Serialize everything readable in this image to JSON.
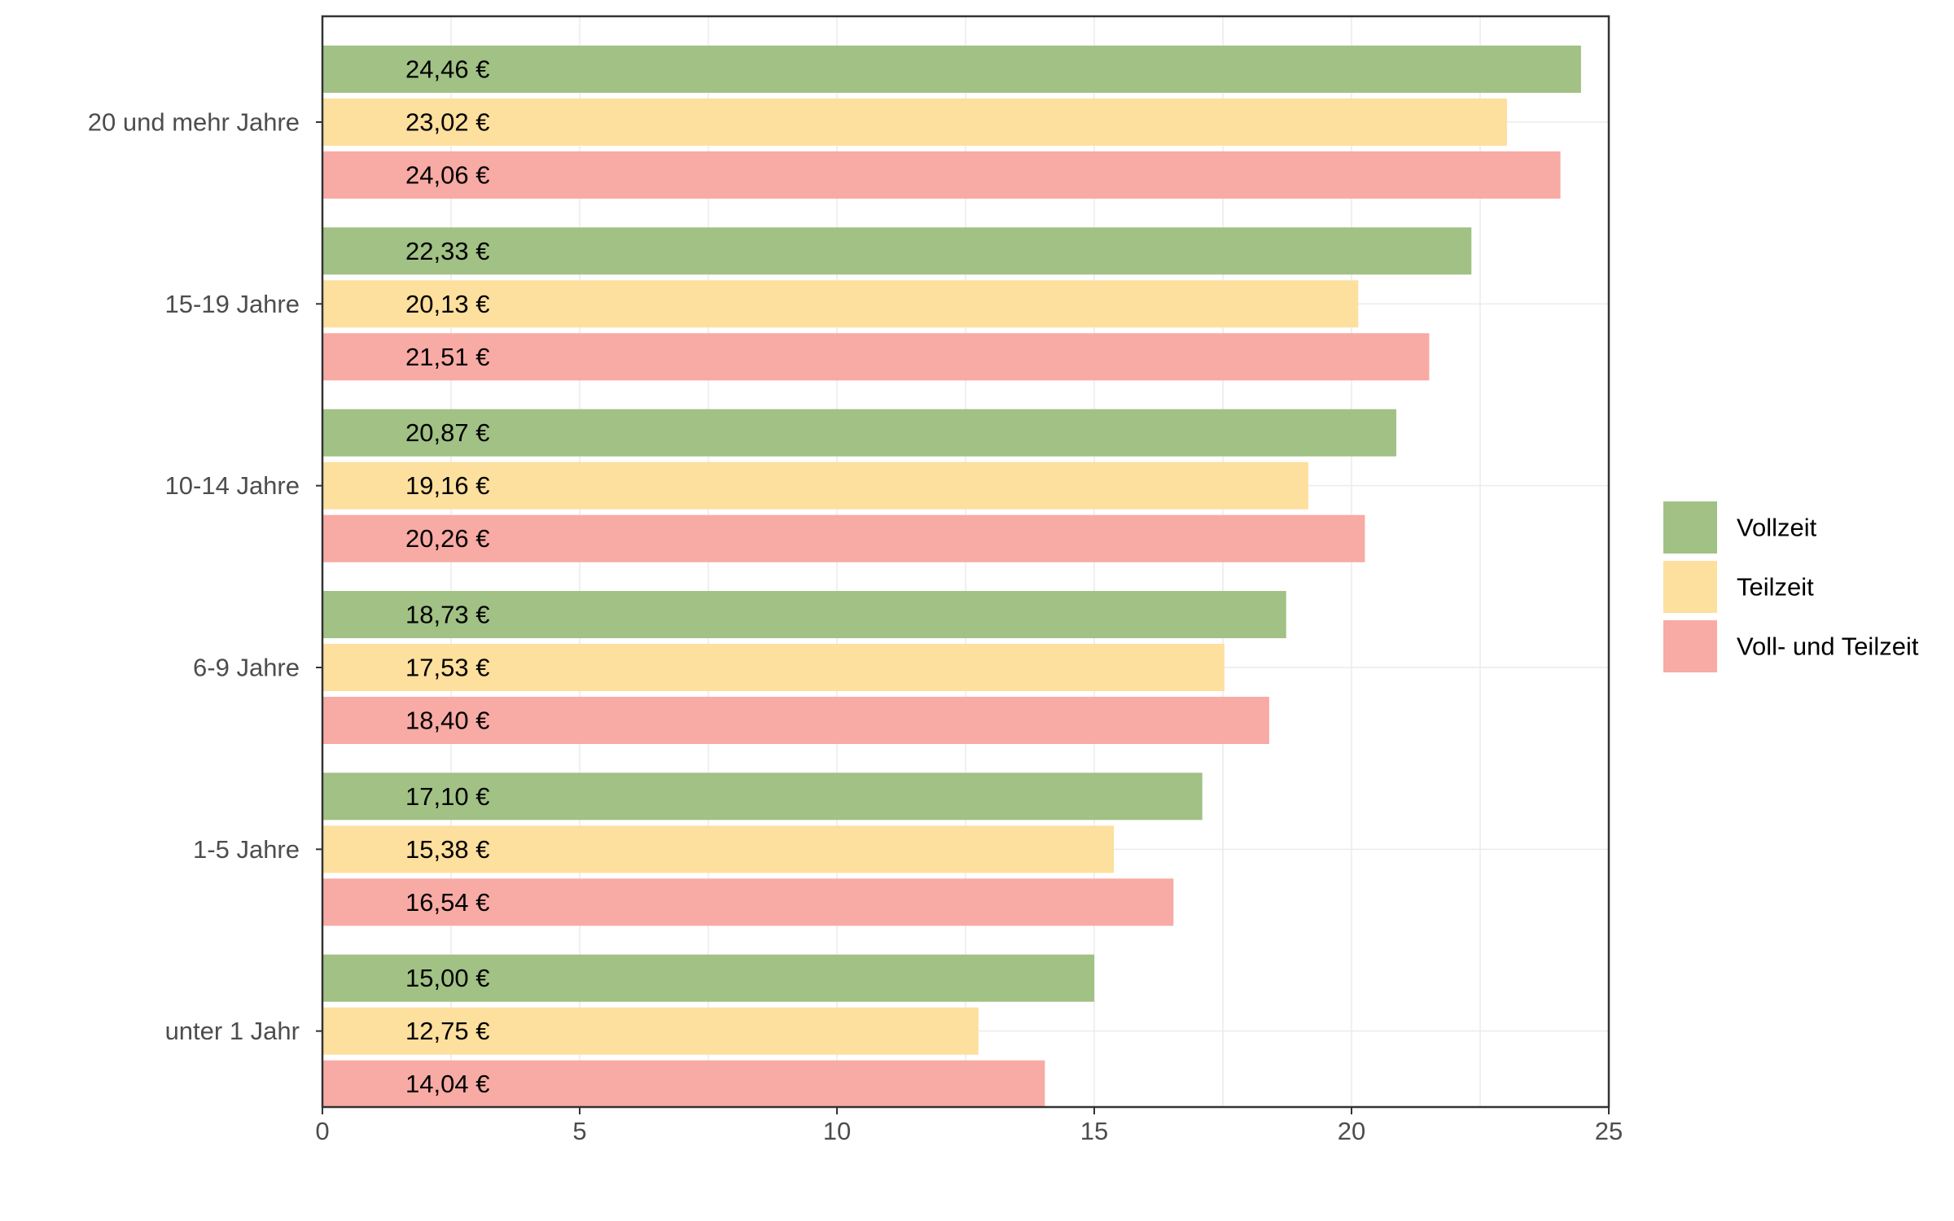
{
  "chart_data": {
    "type": "bar",
    "orientation": "horizontal",
    "categories": [
      "unter 1 Jahr",
      "1-5 Jahre",
      "6-9 Jahre",
      "10-14 Jahre",
      "15-19 Jahre",
      "20 und mehr Jahre"
    ],
    "series": [
      {
        "name": "Vollzeit",
        "color": "#a1c185",
        "values": [
          15.0,
          17.1,
          18.73,
          20.87,
          22.33,
          24.46
        ],
        "labels": [
          "15,00 €",
          "17,10 €",
          "18,73 €",
          "20,87 €",
          "22,33 €",
          "24,46 €"
        ]
      },
      {
        "name": "Teilzeit",
        "color": "#fddf9e",
        "values": [
          12.75,
          15.38,
          17.53,
          19.16,
          20.13,
          23.02
        ],
        "labels": [
          "12,75 €",
          "15,38 €",
          "17,53 €",
          "19,16 €",
          "20,13 €",
          "23,02 €"
        ]
      },
      {
        "name": "Voll- und Teilzeit",
        "color": "#f8aaa4",
        "values": [
          14.04,
          16.54,
          18.4,
          20.26,
          21.51,
          24.06
        ],
        "labels": [
          "14,04 €",
          "16,54 €",
          "18,40 €",
          "20,26 €",
          "21,51 €",
          "24,06 €"
        ]
      }
    ],
    "xlim": [
      0,
      25
    ],
    "xticks": [
      0,
      5,
      10,
      15,
      20,
      25
    ],
    "xtick_labels": [
      "0",
      "5",
      "10",
      "15",
      "20",
      "25"
    ],
    "title": "",
    "xlabel": "",
    "ylabel": "",
    "grid": true,
    "legend_position": "right"
  }
}
